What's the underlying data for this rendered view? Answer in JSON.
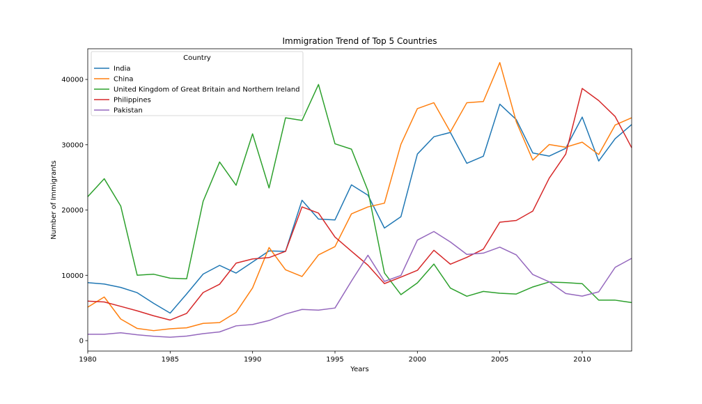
{
  "chart_data": {
    "type": "line",
    "title": "Immigration Trend of Top 5 Countries",
    "xlabel": "Years",
    "ylabel": "Number of Immigrants",
    "xlim": [
      1980,
      2013
    ],
    "ylim": [
      -1600,
      44700
    ],
    "xticks": [
      1980,
      1985,
      1990,
      1995,
      2000,
      2005,
      2010
    ],
    "yticks": [
      0,
      10000,
      20000,
      30000,
      40000
    ],
    "legend": {
      "title": "Country",
      "placement": "top-left"
    },
    "x": [
      1980,
      1981,
      1982,
      1983,
      1984,
      1985,
      1986,
      1987,
      1988,
      1989,
      1990,
      1991,
      1992,
      1993,
      1994,
      1995,
      1996,
      1997,
      1998,
      1999,
      2000,
      2001,
      2002,
      2003,
      2004,
      2005,
      2006,
      2007,
      2008,
      2009,
      2010,
      2011,
      2012,
      2013
    ],
    "series": [
      {
        "name": "India",
        "color": "#1f77b4",
        "values": [
          8880,
          8670,
          8147,
          7338,
          5704,
          4211,
          7150,
          10189,
          11522,
          10343,
          12041,
          13734,
          13673,
          21496,
          18620,
          18489,
          23859,
          22268,
          17241,
          18974,
          28572,
          31223,
          31889,
          27155,
          28235,
          36210,
          33848,
          28742,
          28261,
          29456,
          34235,
          27509,
          30933,
          33087
        ]
      },
      {
        "name": "China",
        "color": "#ff7f0e",
        "values": [
          5123,
          6682,
          3308,
          1863,
          1527,
          1816,
          1960,
          2643,
          2758,
          4323,
          8076,
          14255,
          10846,
          9817,
          13128,
          14398,
          19415,
          20475,
          21049,
          30069,
          35529,
          36434,
          31961,
          36439,
          36619,
          42584,
          33518,
          27642,
          30037,
          29622,
          30391,
          28502,
          33024,
          34129
        ]
      },
      {
        "name": "United Kingdom of Great Britain and Northern Ireland",
        "color": "#2ca02c",
        "values": [
          22045,
          24796,
          20620,
          10015,
          10170,
          9564,
          9470,
          21337,
          27359,
          23795,
          31668,
          23380,
          34123,
          33720,
          39231,
          30145,
          29322,
          22965,
          10367,
          7045,
          8840,
          11728,
          8046,
          6797,
          7533,
          7258,
          7140,
          8216,
          8979,
          8876,
          8724,
          6204,
          6195,
          5827
        ]
      },
      {
        "name": "Philippines",
        "color": "#d62728",
        "values": [
          6051,
          5921,
          5249,
          4562,
          3801,
          3150,
          4166,
          7360,
          8639,
          11865,
          12509,
          12718,
          13670,
          20479,
          19532,
          15864,
          13692,
          11549,
          8735,
          9734,
          10763,
          13836,
          11707,
          12758,
          14004,
          18139,
          18400,
          19837,
          24887,
          28573,
          38617,
          36765,
          34315,
          29544
        ]
      },
      {
        "name": "Pakistan",
        "color": "#9467bd",
        "values": [
          978,
          972,
          1201,
          900,
          668,
          514,
          691,
          1072,
          1334,
          2261,
          2470,
          3079,
          4071,
          4777,
          4666,
          4994,
          9125,
          13073,
          9068,
          9979,
          15400,
          16708,
          15110,
          13205,
          13399,
          14314,
          13127,
          10124,
          8994,
          7217,
          6811,
          7468,
          11227,
          12603
        ]
      }
    ]
  }
}
